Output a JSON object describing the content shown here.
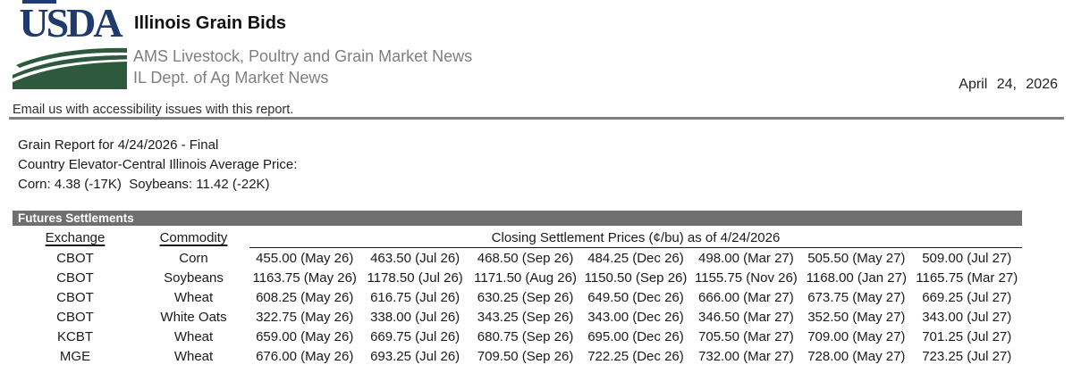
{
  "header": {
    "logo_wordmark": "USDA",
    "title": "Illinois Grain Bids",
    "subtitle1": "AMS Livestock, Poultry and Grain Market News",
    "subtitle2": "IL Dept. of Ag Market News",
    "date": "April 24, 2026"
  },
  "accessibility_note": "Email us with accessibility issues with this report.",
  "report": {
    "line1": "Grain Report for 4/24/2026 - Final",
    "line2": "Country Elevator-Central Illinois Average Price:",
    "line3": "Corn: 4.38 (-17K)  Soybeans: 11.42 (-22K)"
  },
  "futures": {
    "section_title": "Futures Settlements",
    "columns": {
      "exchange": "Exchange",
      "commodity": "Commodity",
      "prices_header": "Closing Settlement Prices (¢/bu) as of 4/24/2026"
    },
    "rows": [
      {
        "exchange": "CBOT",
        "commodity": "Corn",
        "prices": [
          "455.00 (May 26)",
          "463.50 (Jul 26)",
          "468.50 (Sep 26)",
          "484.25 (Dec 26)",
          "498.00 (Mar 27)",
          "505.50 (May 27)",
          "509.00 (Jul 27)"
        ]
      },
      {
        "exchange": "CBOT",
        "commodity": "Soybeans",
        "prices": [
          "1163.75 (May 26)",
          "1178.50 (Jul 26)",
          "1171.50 (Aug 26)",
          "1150.50 (Sep 26)",
          "1155.75 (Nov 26)",
          "1168.00 (Jan 27)",
          "1165.75 (Mar 27)"
        ]
      },
      {
        "exchange": "CBOT",
        "commodity": "Wheat",
        "prices": [
          "608.25 (May 26)",
          "616.75 (Jul 26)",
          "630.25 (Sep 26)",
          "649.50 (Dec 26)",
          "666.00 (Mar 27)",
          "673.75 (May 27)",
          "669.25 (Jul 27)"
        ]
      },
      {
        "exchange": "CBOT",
        "commodity": "White Oats",
        "prices": [
          "322.75 (May 26)",
          "338.00 (Jul 26)",
          "343.25 (Sep 26)",
          "343.00 (Dec 26)",
          "346.50 (Mar 27)",
          "352.50 (May 27)",
          "343.00 (Jul 27)"
        ]
      },
      {
        "exchange": "KCBT",
        "commodity": "Wheat",
        "prices": [
          "659.00 (May 26)",
          "669.75 (Jul 26)",
          "680.75 (Sep 26)",
          "695.00 (Dec 26)",
          "705.50 (Mar 27)",
          "709.00 (May 27)",
          "701.25 (Jul 27)"
        ]
      },
      {
        "exchange": "MGE",
        "commodity": "Wheat",
        "prices": [
          "676.00 (May 26)",
          "693.25 (Jul 26)",
          "709.50 (Sep 26)",
          "722.25 (Dec 26)",
          "732.00 (Mar 27)",
          "728.00 (May 27)",
          "723.25 (Jul 27)"
        ]
      }
    ]
  },
  "colors": {
    "usda_blue": "#1f3a6d",
    "usda_green": "#2d5a3d",
    "bar_gray": "#6f6f6f",
    "subtitle_gray": "#7f7f7f",
    "rule_gray": "#7f7f7f"
  }
}
